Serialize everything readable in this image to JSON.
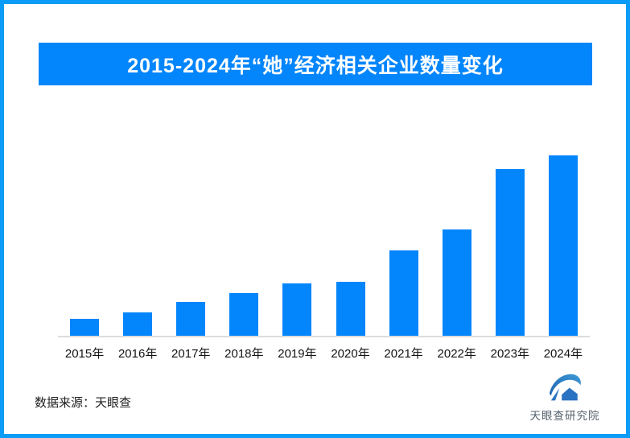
{
  "frame": {
    "border_color": "#0a9cf7",
    "background": "#ffffff"
  },
  "header": {
    "title": "2015-2024年“她”经济相关企业数量变化",
    "background": "#0385fc",
    "text_color": "#ffffff"
  },
  "chart_data": {
    "type": "bar",
    "title": "2015-2024年“她”经济相关企业数量变化",
    "categories": [
      "2015年",
      "2016年",
      "2017年",
      "2018年",
      "2019年",
      "2020年",
      "2021年",
      "2022年",
      "2023年",
      "2024年"
    ],
    "values": [
      9.4,
      12.9,
      18.8,
      23.7,
      29.0,
      29.9,
      47.3,
      58.9,
      92.4,
      100
    ],
    "value_scale": "relative units, 2024 = 100 (chart shows no numeric axis, gridlines or data labels)",
    "xlabel": "",
    "ylabel": "",
    "grid": false,
    "legend": false,
    "bar_color": "#0385fc",
    "axis_line_color": "#dcdcdc",
    "label_color": "#141414"
  },
  "footer": {
    "source_label": "数据来源：天眼查"
  },
  "logo": {
    "text": "天眼查研究院",
    "text_color": "#55616d",
    "mark_color_dark": "#1e62b0",
    "mark_color_light": "#3e9ad6",
    "mark_color_solid": "#2a72c2"
  }
}
